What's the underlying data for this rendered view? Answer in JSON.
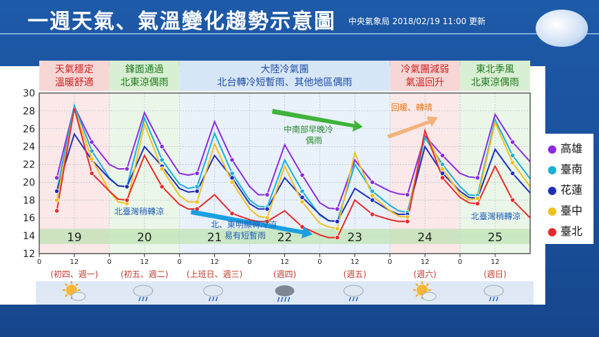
{
  "header": {
    "title": "一週天氣、氣溫變化趨勢示意圖",
    "updated": "中央氣象局 2018/02/19 11:00 更新"
  },
  "phases": [
    {
      "start": 0,
      "end": 1,
      "lines": [
        "天氣穩定",
        "溫暖舒適"
      ],
      "color": "#cc2222",
      "bg": "#f7d6d6"
    },
    {
      "start": 1,
      "end": 2,
      "lines": [
        "鋒面通過",
        "北東涼偶雨"
      ],
      "color": "#1f7a1f",
      "bg": "#d9efd3"
    },
    {
      "start": 2,
      "end": 5,
      "lines": [
        "大陸冷氣團",
        "北台轉冷短暫雨、其他地區偶雨"
      ],
      "color": "#1f4fa8",
      "bg": "#d7e6f7"
    },
    {
      "start": 5,
      "end": 6,
      "lines": [
        "冷氣團減弱",
        "氣溫回升"
      ],
      "color": "#cc2222",
      "bg": "#f7d6d6"
    },
    {
      "start": 6,
      "end": 7,
      "lines": [
        "東北季風",
        "北東涼偶雨"
      ],
      "color": "#1f7a1f",
      "bg": "#d9efd3"
    }
  ],
  "days": [
    {
      "date": "19",
      "label": "(初四、週一)",
      "icon": "sunny-cloudy-icon"
    },
    {
      "date": "20",
      "label": "(初五、週二)",
      "icon": "cloudy-rain-icon"
    },
    {
      "date": "21",
      "label": "(上班日、週三)",
      "icon": "cloudy-rain-icon"
    },
    {
      "date": "22",
      "label": "(週四)",
      "icon": "rain-icon"
    },
    {
      "date": "23",
      "label": "(週五)",
      "icon": "cloudy-rain-icon"
    },
    {
      "date": "24",
      "label": "(週六)",
      "icon": "sunny-cloudy-icon"
    },
    {
      "date": "25",
      "label": "(週日)",
      "icon": "cloudy-rain-icon"
    }
  ],
  "annotations": {
    "warm_sunny": "回暖、轉晴",
    "central_south": [
      "中南部早晚冷",
      "偶雨"
    ],
    "north_cool_1": "北臺灣稍轉涼",
    "north_east_cold": [
      "北、東明顯轉冷涼",
      "易有短暫雨"
    ],
    "north_cool_2": "北臺灣稍轉涼"
  },
  "chart_data": {
    "type": "line",
    "title": "",
    "xlabel": "",
    "ylabel": "",
    "ylim": [
      12,
      30
    ],
    "yticks": [
      12,
      14,
      16,
      18,
      20,
      22,
      24,
      26,
      28,
      30
    ],
    "xticks": [
      "0",
      "12",
      "0",
      "12",
      "0",
      "12",
      "0",
      "12",
      "0",
      "12",
      "0",
      "12",
      "0",
      "12"
    ],
    "x_hours": [
      0,
      12,
      24,
      36,
      48,
      60,
      72,
      84,
      96,
      108,
      120,
      132,
      144,
      156
    ],
    "grid": true,
    "legend_position": "right",
    "series": [
      {
        "name": "高雄",
        "color": "#8a2be2",
        "points": [
          [
            6,
            20.5
          ],
          [
            12,
            28.5
          ],
          [
            18,
            24.5
          ],
          [
            24,
            22
          ],
          [
            27,
            21.5
          ],
          [
            30,
            21.5
          ],
          [
            36,
            27.8
          ],
          [
            42,
            24
          ],
          [
            48,
            21
          ],
          [
            51,
            20.8
          ],
          [
            54,
            21
          ],
          [
            60,
            26.8
          ],
          [
            66,
            22.5
          ],
          [
            72,
            19.5
          ],
          [
            75,
            18.6
          ],
          [
            78,
            18.6
          ],
          [
            84,
            24.2
          ],
          [
            90,
            20.8
          ],
          [
            96,
            17.7
          ],
          [
            99,
            17.1
          ],
          [
            102,
            17
          ],
          [
            108,
            22.5
          ],
          [
            114,
            20
          ],
          [
            120,
            19
          ],
          [
            123,
            18.7
          ],
          [
            126,
            18.6
          ],
          [
            132,
            25.2
          ],
          [
            138,
            23
          ],
          [
            144,
            21
          ],
          [
            147,
            20.6
          ],
          [
            150,
            20.5
          ],
          [
            156,
            27.6
          ],
          [
            162,
            24.5
          ],
          [
            168,
            22.3
          ]
        ]
      },
      {
        "name": "臺南",
        "color": "#18b0d8",
        "points": [
          [
            6,
            19
          ],
          [
            12,
            28.6
          ],
          [
            18,
            23.5
          ],
          [
            24,
            20.5
          ],
          [
            27,
            19.6
          ],
          [
            30,
            19.5
          ],
          [
            36,
            27.2
          ],
          [
            42,
            22.5
          ],
          [
            48,
            19.8
          ],
          [
            51,
            19.3
          ],
          [
            54,
            19.5
          ],
          [
            60,
            25.5
          ],
          [
            66,
            21
          ],
          [
            72,
            18
          ],
          [
            75,
            17.3
          ],
          [
            78,
            17.2
          ],
          [
            84,
            22.5
          ],
          [
            90,
            19
          ],
          [
            96,
            16.3
          ],
          [
            99,
            15.7
          ],
          [
            102,
            15.6
          ],
          [
            108,
            22
          ],
          [
            114,
            19
          ],
          [
            120,
            17.4
          ],
          [
            123,
            16.8
          ],
          [
            126,
            16.6
          ],
          [
            132,
            25
          ],
          [
            138,
            22
          ],
          [
            144,
            19.5
          ],
          [
            147,
            18.6
          ],
          [
            150,
            18.5
          ],
          [
            156,
            27
          ],
          [
            162,
            23
          ],
          [
            168,
            20.4
          ]
        ]
      },
      {
        "name": "花蓮",
        "color": "#1e2fb8",
        "points": [
          [
            6,
            19
          ],
          [
            12,
            25.4
          ],
          [
            18,
            22.5
          ],
          [
            24,
            20.4
          ],
          [
            27,
            19.6
          ],
          [
            30,
            19.5
          ],
          [
            36,
            24
          ],
          [
            42,
            21.8
          ],
          [
            48,
            19.3
          ],
          [
            51,
            18.9
          ],
          [
            54,
            19
          ],
          [
            60,
            23
          ],
          [
            66,
            20.5
          ],
          [
            72,
            17.6
          ],
          [
            75,
            17
          ],
          [
            78,
            17
          ],
          [
            84,
            20.5
          ],
          [
            90,
            18.3
          ],
          [
            96,
            16.4
          ],
          [
            99,
            15.7
          ],
          [
            102,
            15.6
          ],
          [
            108,
            19.3
          ],
          [
            114,
            18
          ],
          [
            120,
            16.8
          ],
          [
            123,
            16.4
          ],
          [
            126,
            16.4
          ],
          [
            132,
            24
          ],
          [
            138,
            21
          ],
          [
            144,
            19
          ],
          [
            147,
            18.3
          ],
          [
            150,
            18.2
          ],
          [
            156,
            23.7
          ],
          [
            162,
            21
          ],
          [
            168,
            18.8
          ]
        ]
      },
      {
        "name": "臺中",
        "color": "#f0c020",
        "points": [
          [
            6,
            18
          ],
          [
            12,
            28.2
          ],
          [
            18,
            22.6
          ],
          [
            24,
            19
          ],
          [
            27,
            17.8
          ],
          [
            30,
            17.6
          ],
          [
            36,
            26.5
          ],
          [
            42,
            21.5
          ],
          [
            48,
            18.5
          ],
          [
            51,
            17.8
          ],
          [
            54,
            17.8
          ],
          [
            60,
            24.3
          ],
          [
            66,
            20
          ],
          [
            72,
            17
          ],
          [
            75,
            16.2
          ],
          [
            78,
            16
          ],
          [
            84,
            21.8
          ],
          [
            90,
            17.8
          ],
          [
            96,
            15.4
          ],
          [
            99,
            15
          ],
          [
            102,
            14.8
          ],
          [
            108,
            23.3
          ],
          [
            114,
            18.5
          ],
          [
            120,
            16.8
          ],
          [
            123,
            16.2
          ],
          [
            126,
            16.1
          ],
          [
            132,
            25.7
          ],
          [
            138,
            21.5
          ],
          [
            144,
            18.7
          ],
          [
            147,
            18
          ],
          [
            150,
            18.2
          ],
          [
            156,
            26.7
          ],
          [
            162,
            22.2
          ],
          [
            168,
            19.5
          ]
        ]
      },
      {
        "name": "臺北",
        "color": "#e8292a",
        "points": [
          [
            6,
            16.8
          ],
          [
            12,
            28.3
          ],
          [
            18,
            21
          ],
          [
            24,
            19
          ],
          [
            27,
            18.1
          ],
          [
            30,
            18
          ],
          [
            36,
            23
          ],
          [
            42,
            19.5
          ],
          [
            48,
            17.5
          ],
          [
            51,
            17
          ],
          [
            54,
            17
          ],
          [
            60,
            18.6
          ],
          [
            66,
            16.5
          ],
          [
            72,
            15.8
          ],
          [
            75,
            15.6
          ],
          [
            78,
            15.6
          ],
          [
            84,
            16.8
          ],
          [
            90,
            15
          ],
          [
            96,
            14.1
          ],
          [
            99,
            13.8
          ],
          [
            102,
            13.8
          ],
          [
            108,
            18
          ],
          [
            114,
            16.4
          ],
          [
            120,
            15.8
          ],
          [
            123,
            15.6
          ],
          [
            126,
            15.6
          ],
          [
            132,
            25.8
          ],
          [
            138,
            20.5
          ],
          [
            144,
            18.3
          ],
          [
            147,
            17.7
          ],
          [
            150,
            17.6
          ],
          [
            156,
            21.8
          ],
          [
            162,
            18
          ],
          [
            168,
            16
          ]
        ]
      }
    ]
  }
}
